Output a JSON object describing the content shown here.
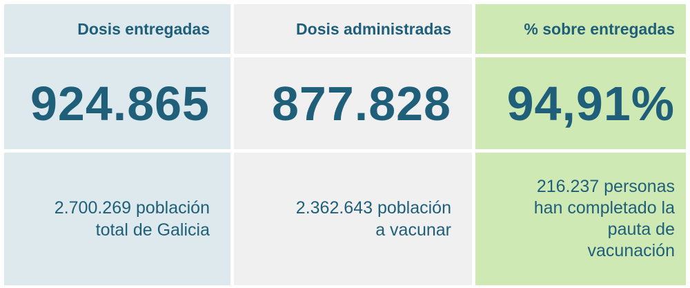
{
  "columns": [
    {
      "header": "Dosis entregadas",
      "value": "924.865",
      "note": "2.700.269 población\ntotal de Galicia"
    },
    {
      "header": "Dosis administradas",
      "value": "877.828",
      "note": "2.362.643 población\na vacunar"
    },
    {
      "header": "% sobre entregadas",
      "value": "94,91%",
      "note": "216.237 personas\nhan completado la\npauta de\nvacunación"
    }
  ],
  "colors": {
    "text": "#1f5f7a",
    "col1_bg": "#dde9ec",
    "col2_bg": "#f0f0f0",
    "col3_bg": "#cfe9b4"
  }
}
